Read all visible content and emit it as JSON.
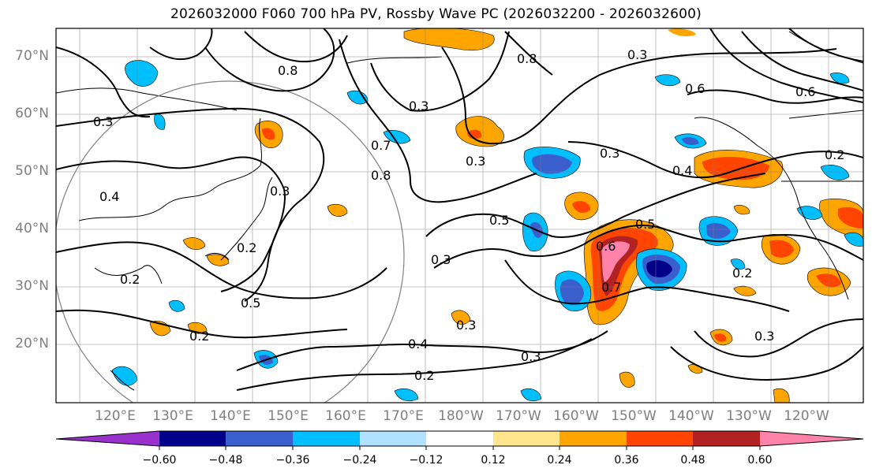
{
  "title": "2026032000 F060 700 hPa PV, Rossby Wave PC (2026032200 - 2026032600)",
  "lat_labels": [
    "70°N",
    "60°N",
    "50°N",
    "40°N",
    "30°N",
    "20°N"
  ],
  "lon_labels": [
    "120°E",
    "130°E",
    "140°E",
    "150°E",
    "160°E",
    "170°E",
    "180°W",
    "170°W",
    "160°W",
    "150°W",
    "140°W",
    "130°W",
    "120°W"
  ],
  "colorbar": {
    "ticks": [
      "−0.60",
      "−0.48",
      "−0.36",
      "−0.24",
      "−0.12",
      "0.12",
      "0.24",
      "0.36",
      "0.48",
      "0.60"
    ],
    "colors": [
      "#9932cc",
      "#00008b",
      "#3a5fcd",
      "#00bfff",
      "#b0e2ff",
      "#ffffff",
      "#ffe68c",
      "#ffa500",
      "#ff4500",
      "#b22222",
      "#ff82ab"
    ]
  },
  "contour_labels": [
    "0.3",
    "0.3",
    "0.3",
    "0.3",
    "0.3",
    "0.3",
    "0.3",
    "0.3",
    "0.3",
    "0.3",
    "0.4",
    "0.4",
    "0.4",
    "0.2",
    "0.2",
    "0.2",
    "0.2",
    "0.2",
    "0.2",
    "0.5",
    "0.5",
    "0.5",
    "0.6",
    "0.6",
    "0.6",
    "0.7",
    "0.7",
    "0.8",
    "0.8",
    "0.8"
  ]
}
